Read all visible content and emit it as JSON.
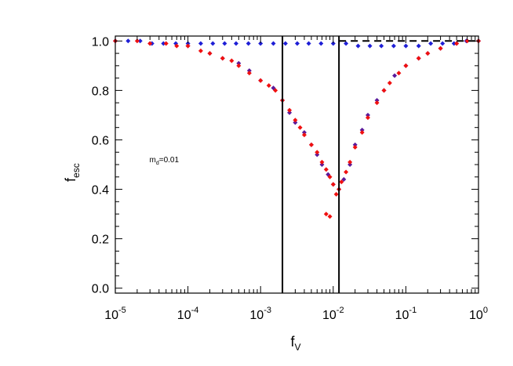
{
  "chart_data": {
    "type": "scatter",
    "title": "",
    "xlabel": {
      "main": "f",
      "sub": "V"
    },
    "ylabel": {
      "main": "f",
      "sub": "esc"
    },
    "x_scale": "log",
    "xlim": [
      1e-05,
      1
    ],
    "ylim": [
      -0.02,
      1.02
    ],
    "x_ticks": [
      {
        "value": 1e-05,
        "base": "10",
        "exp": "-5"
      },
      {
        "value": 0.0001,
        "base": "10",
        "exp": "-4"
      },
      {
        "value": 0.001,
        "base": "10",
        "exp": "-3"
      },
      {
        "value": 0.01,
        "base": "10",
        "exp": "-2"
      },
      {
        "value": 0.1,
        "base": "10",
        "exp": "-1"
      },
      {
        "value": 1,
        "base": "10",
        "exp": "0"
      }
    ],
    "y_ticks": [
      {
        "value": 0.0,
        "label": "0.0"
      },
      {
        "value": 0.2,
        "label": "0.2"
      },
      {
        "value": 0.4,
        "label": "0.4"
      },
      {
        "value": 0.6,
        "label": "0.6"
      },
      {
        "value": 0.8,
        "label": "0.8"
      },
      {
        "value": 1.0,
        "label": "1.0"
      }
    ],
    "grid": false,
    "vertical_lines": [
      0.002,
      0.012
    ],
    "reference_line": {
      "y": 1.0,
      "x_from": 0.012,
      "x_to": 1,
      "style": "dashed"
    },
    "annotation": {
      "main": "m",
      "sub": "d",
      "rest": "=0.01",
      "x": 2.95e-05,
      "y": 0.51
    },
    "colors": {
      "blue": "#1f1fd6",
      "purple": "#5a1a9a",
      "red": "#f01010",
      "axis": "#000000"
    },
    "series": [
      {
        "color": "blue",
        "points": [
          [
            1e-05,
            1.0
          ],
          [
            1.5e-05,
            1.0
          ],
          [
            2.2e-05,
            1.0
          ],
          [
            3.2e-05,
            0.99
          ],
          [
            4.6e-05,
            0.99
          ],
          [
            6.8e-05,
            0.99
          ],
          [
            0.0001,
            0.99
          ],
          [
            0.00015,
            0.99
          ],
          [
            0.00022,
            0.99
          ],
          [
            0.00032,
            0.99
          ],
          [
            0.00046,
            0.99
          ],
          [
            0.00068,
            0.99
          ],
          [
            0.001,
            0.99
          ],
          [
            0.0015,
            0.99
          ],
          [
            0.0022,
            0.99
          ],
          [
            0.0032,
            0.99
          ],
          [
            0.0046,
            0.99
          ],
          [
            0.0068,
            0.99
          ],
          [
            0.01,
            0.99
          ],
          [
            0.015,
            0.99
          ],
          [
            0.022,
            0.98
          ],
          [
            0.032,
            0.98
          ],
          [
            0.046,
            0.98
          ],
          [
            0.068,
            0.98
          ],
          [
            0.1,
            0.98
          ],
          [
            0.15,
            0.98
          ],
          [
            0.22,
            0.99
          ],
          [
            0.32,
            0.99
          ],
          [
            0.46,
            0.99
          ],
          [
            0.68,
            1.0
          ],
          [
            1.0,
            1.0
          ]
        ]
      },
      {
        "color": "purple",
        "points": [
          [
            1e-05,
            1.0
          ],
          [
            3e-05,
            0.99
          ],
          [
            0.0001,
            0.98
          ],
          [
            0.0002,
            0.95
          ],
          [
            0.0003,
            0.93
          ],
          [
            0.0005,
            0.91
          ],
          [
            0.0007,
            0.88
          ],
          [
            0.001,
            0.84
          ],
          [
            0.0015,
            0.81
          ],
          [
            0.002,
            0.76
          ],
          [
            0.0025,
            0.71
          ],
          [
            0.003,
            0.67
          ],
          [
            0.004,
            0.63
          ],
          [
            0.005,
            0.58
          ],
          [
            0.006,
            0.54
          ],
          [
            0.007,
            0.5
          ],
          [
            0.0085,
            0.46
          ],
          [
            0.01,
            0.42
          ],
          [
            0.012,
            0.4
          ],
          [
            0.014,
            0.44
          ],
          [
            0.017,
            0.5
          ],
          [
            0.02,
            0.58
          ],
          [
            0.025,
            0.64
          ],
          [
            0.03,
            0.7
          ],
          [
            0.04,
            0.76
          ],
          [
            0.05,
            0.8
          ],
          [
            0.07,
            0.86
          ],
          [
            0.1,
            0.9
          ],
          [
            0.15,
            0.93
          ],
          [
            0.2,
            0.95
          ],
          [
            0.3,
            0.97
          ],
          [
            0.5,
            0.99
          ],
          [
            1.0,
            1.0
          ]
        ]
      },
      {
        "color": "red",
        "points": [
          [
            1e-05,
            1.0
          ],
          [
            2e-05,
            1.0
          ],
          [
            3e-05,
            0.99
          ],
          [
            5e-05,
            0.99
          ],
          [
            7e-05,
            0.98
          ],
          [
            0.0001,
            0.98
          ],
          [
            0.00015,
            0.96
          ],
          [
            0.0002,
            0.95
          ],
          [
            0.0003,
            0.93
          ],
          [
            0.0004,
            0.92
          ],
          [
            0.0005,
            0.9
          ],
          [
            0.0007,
            0.87
          ],
          [
            0.001,
            0.84
          ],
          [
            0.0013,
            0.82
          ],
          [
            0.0016,
            0.8
          ],
          [
            0.002,
            0.76
          ],
          [
            0.0025,
            0.72
          ],
          [
            0.003,
            0.68
          ],
          [
            0.0035,
            0.65
          ],
          [
            0.004,
            0.62
          ],
          [
            0.005,
            0.58
          ],
          [
            0.006,
            0.55
          ],
          [
            0.007,
            0.51
          ],
          [
            0.008,
            0.48
          ],
          [
            0.009,
            0.45
          ],
          [
            0.01,
            0.42
          ],
          [
            0.011,
            0.38
          ],
          [
            0.012,
            0.4
          ],
          [
            0.013,
            0.43
          ],
          [
            0.015,
            0.47
          ],
          [
            0.017,
            0.51
          ],
          [
            0.02,
            0.57
          ],
          [
            0.025,
            0.63
          ],
          [
            0.03,
            0.69
          ],
          [
            0.04,
            0.75
          ],
          [
            0.05,
            0.8
          ],
          [
            0.06,
            0.83
          ],
          [
            0.08,
            0.87
          ],
          [
            0.1,
            0.9
          ],
          [
            0.15,
            0.93
          ],
          [
            0.2,
            0.95
          ],
          [
            0.3,
            0.97
          ],
          [
            0.5,
            0.99
          ],
          [
            0.7,
            1.0
          ],
          [
            1.0,
            1.0
          ],
          [
            0.008,
            0.3
          ],
          [
            0.009,
            0.29
          ]
        ]
      }
    ]
  }
}
